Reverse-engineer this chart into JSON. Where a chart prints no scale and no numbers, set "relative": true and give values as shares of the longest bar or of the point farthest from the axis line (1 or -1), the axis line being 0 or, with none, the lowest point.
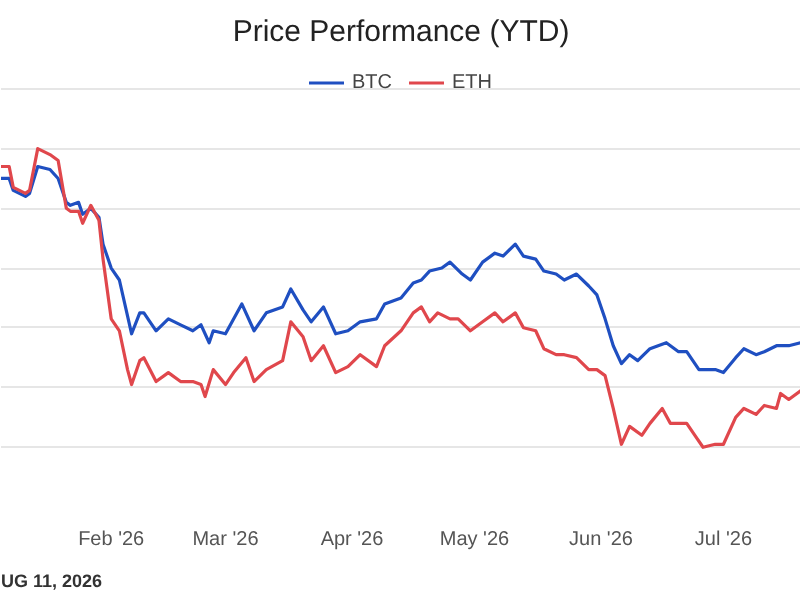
{
  "chart_data": {
    "type": "line",
    "title": "Price Performance (YTD)",
    "relative": true,
    "legend": "top",
    "grid": "y",
    "line_style": "solid",
    "marker": "none",
    "xlim": [
      "2026-01-05",
      "2026-07-20"
    ],
    "xticks": [
      {
        "value": "2026-02-01",
        "label": "Feb '26"
      },
      {
        "value": "2026-03-01",
        "label": "Mar '26"
      },
      {
        "value": "2026-04-01",
        "label": "Apr '26"
      },
      {
        "value": "2026-05-01",
        "label": "May '26"
      },
      {
        "value": "2026-06-01",
        "label": "Jun '26"
      },
      {
        "value": "2026-07-01",
        "label": "Jul '26"
      }
    ],
    "annotations": [
      "UG 11, 2026"
    ],
    "series": [
      {
        "name": "BTC",
        "color": "#1f4fc1",
        "x": [
          "2026-01-05",
          "2026-01-07",
          "2026-01-08",
          "2026-01-11",
          "2026-01-12",
          "2026-01-14",
          "2026-01-17",
          "2026-01-19",
          "2026-01-21",
          "2026-01-22",
          "2026-01-24",
          "2026-01-25",
          "2026-01-27",
          "2026-01-29",
          "2026-01-30",
          "2026-02-01",
          "2026-02-03",
          "2026-02-06",
          "2026-02-08",
          "2026-02-09",
          "2026-02-12",
          "2026-02-15",
          "2026-02-18",
          "2026-02-21",
          "2026-02-23",
          "2026-02-25",
          "2026-02-26",
          "2026-03-01",
          "2026-03-05",
          "2026-03-08",
          "2026-03-11",
          "2026-03-15",
          "2026-03-17",
          "2026-03-20",
          "2026-03-22",
          "2026-03-25",
          "2026-03-28",
          "2026-03-31",
          "2026-04-03",
          "2026-04-07",
          "2026-04-09",
          "2026-04-13",
          "2026-04-16",
          "2026-04-18",
          "2026-04-20",
          "2026-04-23",
          "2026-04-25",
          "2026-04-28",
          "2026-04-30",
          "2026-05-03",
          "2026-05-06",
          "2026-05-08",
          "2026-05-11",
          "2026-05-13",
          "2026-05-16",
          "2026-05-18",
          "2026-05-21",
          "2026-05-23",
          "2026-05-26",
          "2026-05-29",
          "2026-05-31",
          "2026-06-02",
          "2026-06-04",
          "2026-06-06",
          "2026-06-08",
          "2026-06-10",
          "2026-06-13",
          "2026-06-17",
          "2026-06-20",
          "2026-06-22",
          "2026-06-25",
          "2026-06-29",
          "2026-07-01",
          "2026-07-04",
          "2026-07-06",
          "2026-07-09",
          "2026-07-11",
          "2026-07-14",
          "2026-07-17",
          "2026-07-20"
        ],
        "values": [
          0.9,
          0.9,
          0.86,
          0.84,
          0.85,
          0.94,
          0.93,
          0.9,
          0.82,
          0.81,
          0.82,
          0.78,
          0.8,
          0.77,
          0.68,
          0.6,
          0.56,
          0.38,
          0.45,
          0.45,
          0.39,
          0.43,
          0.41,
          0.39,
          0.41,
          0.35,
          0.39,
          0.38,
          0.48,
          0.39,
          0.45,
          0.47,
          0.53,
          0.46,
          0.42,
          0.47,
          0.38,
          0.39,
          0.42,
          0.43,
          0.48,
          0.5,
          0.55,
          0.56,
          0.59,
          0.6,
          0.62,
          0.58,
          0.56,
          0.62,
          0.65,
          0.64,
          0.68,
          0.64,
          0.63,
          0.59,
          0.58,
          0.56,
          0.58,
          0.54,
          0.51,
          0.43,
          0.34,
          0.28,
          0.31,
          0.29,
          0.33,
          0.35,
          0.32,
          0.32,
          0.26,
          0.26,
          0.25,
          0.3,
          0.33,
          0.31,
          0.32,
          0.34,
          0.34,
          0.35
        ]
      },
      {
        "name": "ETH",
        "color": "#e0474c",
        "x": [
          "2026-01-05",
          "2026-01-07",
          "2026-01-08",
          "2026-01-11",
          "2026-01-12",
          "2026-01-14",
          "2026-01-17",
          "2026-01-19",
          "2026-01-21",
          "2026-01-22",
          "2026-01-24",
          "2026-01-25",
          "2026-01-27",
          "2026-01-29",
          "2026-01-30",
          "2026-02-01",
          "2026-02-03",
          "2026-02-05",
          "2026-02-06",
          "2026-02-08",
          "2026-02-09",
          "2026-02-12",
          "2026-02-15",
          "2026-02-18",
          "2026-02-21",
          "2026-02-23",
          "2026-02-24",
          "2026-02-26",
          "2026-03-01",
          "2026-03-03",
          "2026-03-06",
          "2026-03-08",
          "2026-03-11",
          "2026-03-15",
          "2026-03-17",
          "2026-03-20",
          "2026-03-22",
          "2026-03-25",
          "2026-03-28",
          "2026-03-31",
          "2026-04-03",
          "2026-04-07",
          "2026-04-09",
          "2026-04-13",
          "2026-04-16",
          "2026-04-18",
          "2026-04-20",
          "2026-04-22",
          "2026-04-25",
          "2026-04-27",
          "2026-04-30",
          "2026-05-03",
          "2026-05-06",
          "2026-05-08",
          "2026-05-11",
          "2026-05-13",
          "2026-05-16",
          "2026-05-18",
          "2026-05-21",
          "2026-05-23",
          "2026-05-26",
          "2026-05-29",
          "2026-05-31",
          "2026-06-02",
          "2026-06-04",
          "2026-06-06",
          "2026-06-08",
          "2026-06-11",
          "2026-06-13",
          "2026-06-16",
          "2026-06-18",
          "2026-06-22",
          "2026-06-24",
          "2026-06-26",
          "2026-06-29",
          "2026-07-01",
          "2026-07-04",
          "2026-07-06",
          "2026-07-09",
          "2026-07-11",
          "2026-07-14",
          "2026-07-15",
          "2026-07-17",
          "2026-07-20"
        ],
        "values": [
          0.94,
          0.94,
          0.87,
          0.85,
          0.86,
          1.0,
          0.98,
          0.96,
          0.8,
          0.79,
          0.79,
          0.75,
          0.81,
          0.76,
          0.63,
          0.43,
          0.39,
          0.26,
          0.21,
          0.29,
          0.3,
          0.22,
          0.25,
          0.22,
          0.22,
          0.21,
          0.17,
          0.26,
          0.21,
          0.25,
          0.3,
          0.22,
          0.26,
          0.29,
          0.42,
          0.37,
          0.29,
          0.34,
          0.25,
          0.27,
          0.31,
          0.27,
          0.34,
          0.39,
          0.45,
          0.47,
          0.42,
          0.45,
          0.43,
          0.43,
          0.39,
          0.42,
          0.45,
          0.42,
          0.45,
          0.4,
          0.39,
          0.33,
          0.31,
          0.31,
          0.3,
          0.26,
          0.26,
          0.24,
          0.13,
          0.01,
          0.07,
          0.04,
          0.08,
          0.13,
          0.08,
          0.08,
          0.04,
          0.0,
          0.01,
          0.01,
          0.1,
          0.13,
          0.11,
          0.14,
          0.13,
          0.18,
          0.16,
          0.19
        ]
      }
    ]
  }
}
